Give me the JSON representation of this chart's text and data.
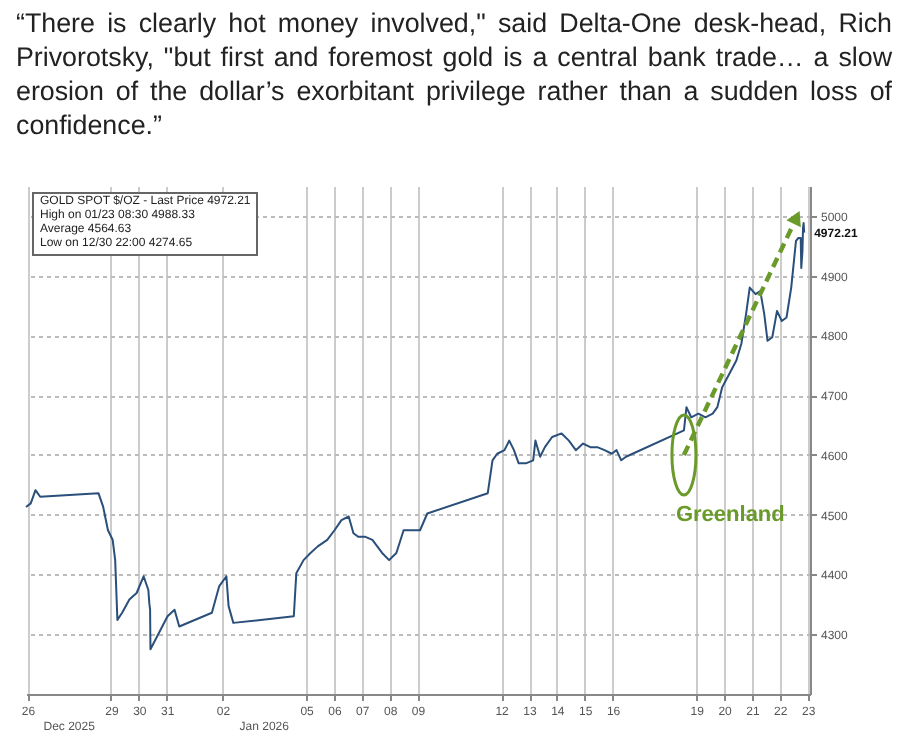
{
  "chart_data": {
    "type": "line",
    "title": "“There is clearly hot money involved,\" said Delta-One desk-head, Rich Privorotsky, \"but first and foremost gold is a central bank trade… a slow erosion of the dollar’s exorbitant privilege rather than a sudden loss of confidence.”",
    "x": [
      "2025-12-26T10:48",
      "2025-12-26T14:53",
      "2025-12-26T18:58",
      "2025-12-26T23:02",
      "2025-12-29T01:12",
      "2025-12-29T05:17",
      "2025-12-29T09:22",
      "2025-12-29T13:26",
      "2025-12-29T15:36",
      "2025-12-29T17:31",
      "2025-12-29T21:36",
      "2025-12-30T03:50",
      "2025-12-30T10:05",
      "2025-12-30T16:05",
      "2025-12-30T20:10",
      "2025-12-30T21:00",
      "2025-12-30T21:40",
      "2025-12-30T22:00",
      "2025-12-31T12:43",
      "2025-12-31T18:43",
      "2025-12-31T22:48",
      "2026-01-02T02:53",
      "2026-01-02T09:07",
      "2026-01-02T15:22",
      "2026-01-02T17:17",
      "2026-01-02T21:22",
      "2026-01-05T01:26",
      "2026-01-05T03:36",
      "2026-01-05T09:50",
      "2026-01-05T15:50",
      "2026-01-05T22:05",
      "2026-01-06T06:14",
      "2026-01-06T12:29",
      "2026-01-06T18:29",
      "2026-01-07T00:43",
      "2026-01-07T04:48",
      "2026-01-07T08:53",
      "2026-01-07T15:07",
      "2026-01-07T21:07",
      "2026-01-08T05:31",
      "2026-01-08T11:31",
      "2026-01-08T17:46",
      "2026-01-09T00:00",
      "2026-01-09T06:00",
      "2026-01-09T14:10",
      "2026-01-09T20:24",
      "2026-01-12T00:29",
      "2026-01-12T04:34",
      "2026-01-12T08:38",
      "2026-01-12T14:53",
      "2026-01-12T18:58",
      "2026-01-12T23:02",
      "2026-01-13T03:07",
      "2026-01-13T09:22",
      "2026-01-13T15:36",
      "2026-01-13T17:31",
      "2026-01-13T21:36",
      "2026-01-14T01:41",
      "2026-01-14T07:55",
      "2026-01-14T16:05",
      "2026-01-14T22:19",
      "2026-01-15T04:19",
      "2026-01-15T10:34",
      "2026-01-15T16:48",
      "2026-01-15T22:48",
      "2026-01-16T05:02",
      "2026-01-16T11:17",
      "2026-01-16T15:22",
      "2026-01-16T19:26",
      "2026-01-16T23:31",
      "2026-01-19T01:26",
      "2026-01-19T03:36",
      "2026-01-19T07:41",
      "2026-01-19T13:55",
      "2026-01-19T19:55",
      "2026-01-20T02:10",
      "2026-01-20T06:14",
      "2026-01-20T10:19",
      "2026-01-20T16:34",
      "2026-01-20T22:34",
      "2026-01-21T02:53",
      "2026-01-21T06:58",
      "2026-01-21T10:05",
      "2026-01-21T15:07",
      "2026-01-21T19:12",
      "2026-01-21T22:34",
      "2026-01-22T01:26",
      "2026-01-22T05:31",
      "2026-01-22T09:36",
      "2026-01-22T13:41",
      "2026-01-22T17:46",
      "2026-01-22T21:50",
      "2026-01-23T01:55",
      "2026-01-23T04:00",
      "2026-01-23T06:00",
      "2026-01-23T06:30",
      "2026-01-23T07:30",
      "2026-01-23T08:00",
      "2026-01-23T08:30",
      "2026-01-23T09:00"
    ],
    "series": [
      {
        "color": "#2a4f7a",
        "values": [
          4513,
          4519,
          4541,
          4530,
          4536,
          4513,
          4474,
          4458,
          4424,
          4324,
          4336,
          4358,
          4369,
          4397,
          4374,
          4352,
          4341,
          4275,
          4330,
          4341,
          4313,
          4336,
          4380,
          4397,
          4347,
          4319,
          4330,
          4402,
          4424,
          4436,
          4447,
          4458,
          4474,
          4491,
          4497,
          4469,
          4463,
          4463,
          4458,
          4436,
          4424,
          4436,
          4474,
          4474,
          4474,
          4502,
          4536,
          4591,
          4602,
          4608,
          4624,
          4608,
          4586,
          4586,
          4591,
          4624,
          4597,
          4613,
          4630,
          4636,
          4624,
          4608,
          4619,
          4613,
          4613,
          4608,
          4602,
          4608,
          4591,
          4597,
          4641,
          4680,
          4663,
          4669,
          4663,
          4669,
          4680,
          4713,
          4736,
          4758,
          4786,
          4836,
          4880,
          4869,
          4874,
          4836,
          4791,
          4797,
          4841,
          4824,
          4830,
          4880,
          4958,
          4963,
          4963,
          4913,
          4941,
          4980,
          4988,
          4972
        ]
      }
    ],
    "xlim": [
      "2025-12-26T10:48",
      "2026-01-23T14:00"
    ],
    "xticks": [
      {
        "value": "2025-12-26T12:00",
        "label": "26"
      },
      {
        "value": "2025-12-29T12:00",
        "label": "29"
      },
      {
        "value": "2025-12-30T12:00",
        "label": "30"
      },
      {
        "value": "2025-12-31T12:00",
        "label": "31"
      },
      {
        "value": "2026-01-02T12:00",
        "label": "02"
      },
      {
        "value": "2026-01-05T12:00",
        "label": "05"
      },
      {
        "value": "2026-01-06T12:00",
        "label": "06"
      },
      {
        "value": "2026-01-07T12:00",
        "label": "07"
      },
      {
        "value": "2026-01-08T12:00",
        "label": "08"
      },
      {
        "value": "2026-01-09T12:00",
        "label": "09"
      },
      {
        "value": "2026-01-12T12:00",
        "label": "12"
      },
      {
        "value": "2026-01-13T12:00",
        "label": "13"
      },
      {
        "value": "2026-01-14T12:00",
        "label": "14"
      },
      {
        "value": "2026-01-15T12:00",
        "label": "15"
      },
      {
        "value": "2026-01-16T12:00",
        "label": "16"
      },
      {
        "value": "2026-01-19T12:00",
        "label": "19"
      },
      {
        "value": "2026-01-20T12:00",
        "label": "20"
      },
      {
        "value": "2026-01-21T12:00",
        "label": "21"
      },
      {
        "value": "2026-01-22T12:00",
        "label": "22"
      },
      {
        "value": "2026-01-23T12:00",
        "label": "23"
      }
    ],
    "ylim": [
      4200,
      5050
    ],
    "yticks": [
      4300,
      4400,
      4500,
      4600,
      4700,
      4800,
      4900,
      5000
    ],
    "grid": true,
    "annotations": [
      "GOLD SPOT $/OZ - Last Price 4972.21",
      "High on 01/23 08:30 4988.33",
      "Average 4564.63",
      "Low on 12/30 22:00 4274.65",
      "Dec 2025",
      "Jan 2026",
      {
        "text": "4972.21",
        "x": "2026-01-23T09:00",
        "y": 4972
      },
      {
        "text": "Greenland",
        "x": "2026-01-19T01:26",
        "y": 4600
      }
    ]
  }
}
